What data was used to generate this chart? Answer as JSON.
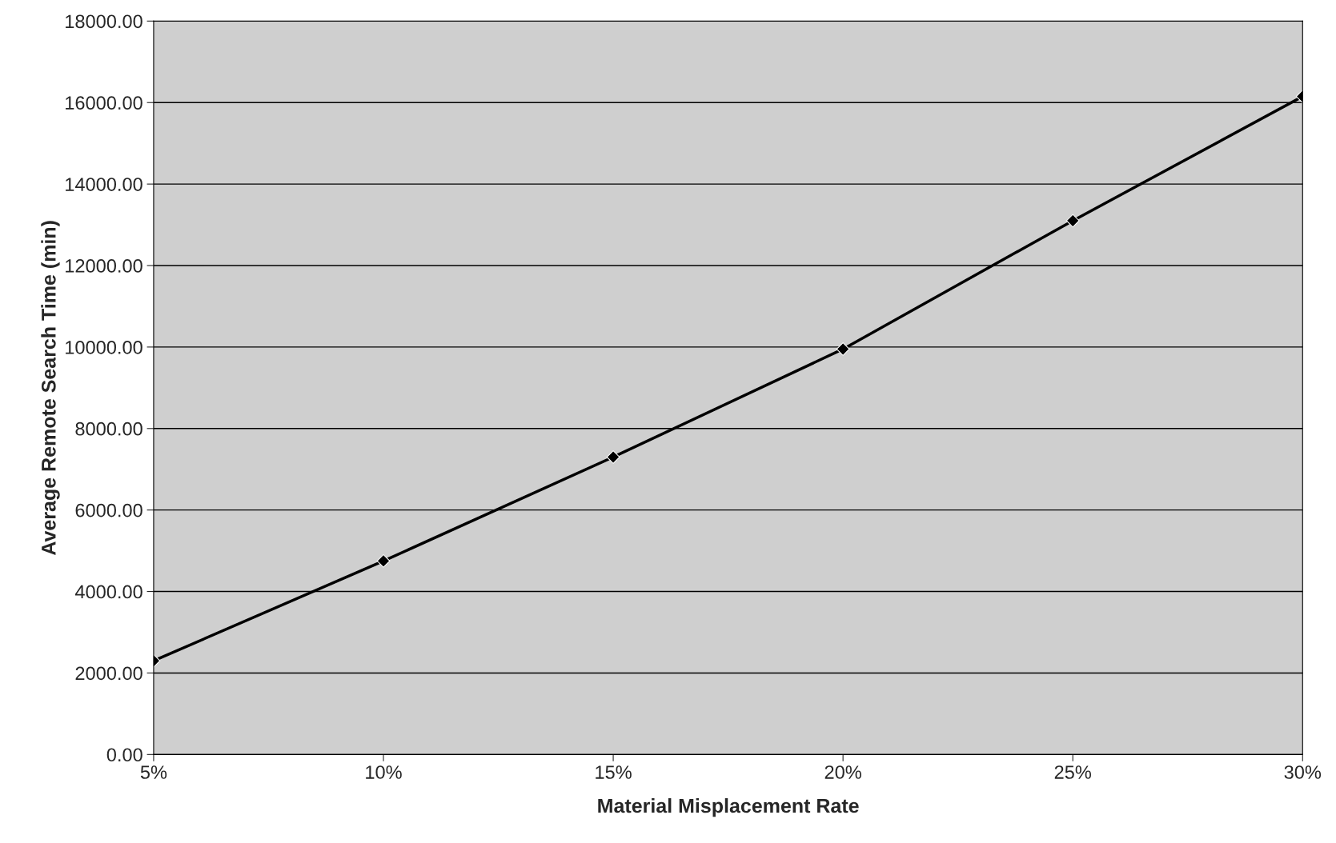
{
  "chart_data": {
    "type": "line",
    "xlabel": "Material Misplacement Rate",
    "ylabel": "Average Remote Search Time (min)",
    "categories": [
      "5%",
      "10%",
      "15%",
      "20%",
      "25%",
      "30%"
    ],
    "series": [
      {
        "color": "#000000",
        "values": [
          2300,
          4750,
          7300,
          9950,
          13100,
          16150
        ]
      }
    ],
    "ylim": [
      0,
      18000
    ],
    "yticks": [
      {
        "value": 0,
        "label": "0.00"
      },
      {
        "value": 2000,
        "label": "2000.00"
      },
      {
        "value": 4000,
        "label": "4000.00"
      },
      {
        "value": 6000,
        "label": "6000.00"
      },
      {
        "value": 8000,
        "label": "8000.00"
      },
      {
        "value": 10000,
        "label": "10000.00"
      },
      {
        "value": 12000,
        "label": "12000.00"
      },
      {
        "value": 14000,
        "label": "14000.00"
      },
      {
        "value": 16000,
        "label": "16000.00"
      },
      {
        "value": 18000,
        "label": "18000.00"
      }
    ],
    "grid": "y",
    "marker": "diamond",
    "line_style": "solid"
  }
}
